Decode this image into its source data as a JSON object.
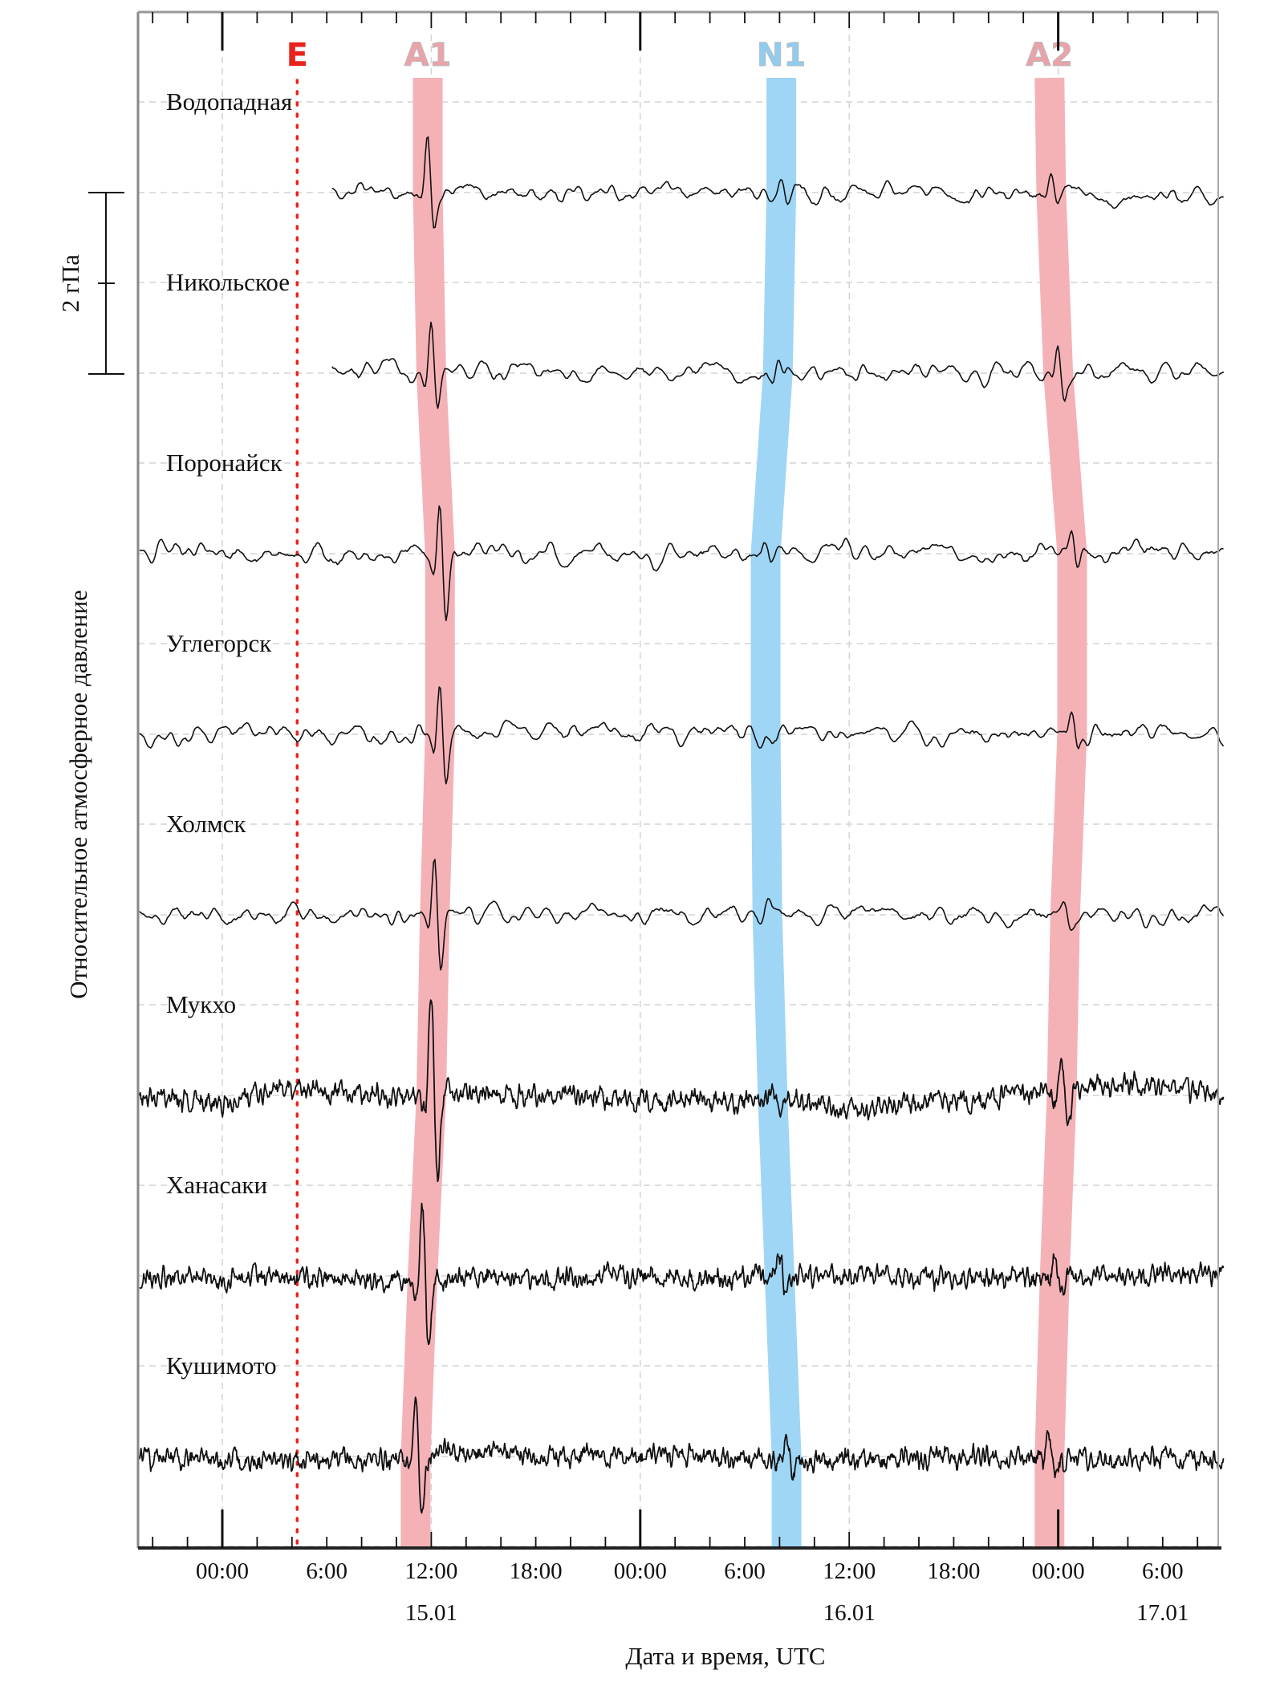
{
  "chart_data": {
    "type": "line",
    "title": "",
    "xlabel": "Дата и время, UTC",
    "ylabel": "Относительное атмосферное давление",
    "scale_bar": {
      "label": "2 гПа",
      "value_hpa": 2
    },
    "x_unit": "hours since 00:00 (first labelled midnight)",
    "xlim": [
      -4.75,
      57.5
    ],
    "x_ticks": [
      {
        "t": 0,
        "label": "00:00"
      },
      {
        "t": 6,
        "label": "6:00"
      },
      {
        "t": 12,
        "label": "12:00"
      },
      {
        "t": 18,
        "label": "18:00"
      },
      {
        "t": 24,
        "label": "00:00"
      },
      {
        "t": 30,
        "label": "6:00"
      },
      {
        "t": 36,
        "label": "12:00"
      },
      {
        "t": 42,
        "label": "18:00"
      },
      {
        "t": 48,
        "label": "00:00"
      },
      {
        "t": 54,
        "label": "6:00"
      }
    ],
    "date_labels": [
      {
        "t": 12,
        "label": "15.01"
      },
      {
        "t": 36,
        "label": "16.01"
      },
      {
        "t": 54,
        "label": "17.01"
      }
    ],
    "event_marker": {
      "label": "E",
      "t": 4.3,
      "color": "#e8231b"
    },
    "stations": [
      {
        "name": "Водопадная",
        "start": 6.3,
        "kind": "smooth"
      },
      {
        "name": "Никольское",
        "start": 6.3,
        "kind": "smooth"
      },
      {
        "name": "Поронайск",
        "start": -4.75,
        "kind": "smooth"
      },
      {
        "name": "Углегорск",
        "start": -4.75,
        "kind": "smooth"
      },
      {
        "name": "Холмск",
        "start": -4.75,
        "kind": "smooth"
      },
      {
        "name": "Мукхо",
        "start": -4.75,
        "kind": "noisy"
      },
      {
        "name": "Ханасаки",
        "start": -4.75,
        "kind": "noisy"
      },
      {
        "name": "Кушимото",
        "start": -4.75,
        "kind": "noisy"
      }
    ],
    "arrival_bands": [
      {
        "label": "A1",
        "color": "#f4b2b7",
        "label_color": "#e9a3a9",
        "top": 11.8,
        "times": [
          11.8,
          12.0,
          12.5,
          12.5,
          12.2,
          12.0,
          11.5,
          11.1
        ],
        "amplitude_hpa": [
          0.6,
          0.55,
          0.75,
          0.7,
          0.7,
          1.1,
          0.9,
          0.75
        ]
      },
      {
        "label": "N1",
        "color": "#9fd6f5",
        "label_color": "#8ecdf0",
        "top": 32.1,
        "times": [
          32.1,
          31.9,
          31.2,
          31.2,
          31.3,
          31.6,
          32.0,
          32.4
        ],
        "amplitude_hpa": [
          0.12,
          0.15,
          0.1,
          0.1,
          0.08,
          0.15,
          0.2,
          0.2
        ]
      },
      {
        "label": "A2",
        "color": "#f4b2b7",
        "label_color": "#e9a3a9",
        "top": 47.5,
        "times": [
          47.6,
          48.0,
          48.8,
          48.8,
          48.4,
          48.2,
          47.8,
          47.5
        ],
        "amplitude_hpa": [
          0.2,
          0.35,
          0.3,
          0.25,
          0.12,
          0.45,
          0.2,
          0.25
        ]
      }
    ]
  }
}
